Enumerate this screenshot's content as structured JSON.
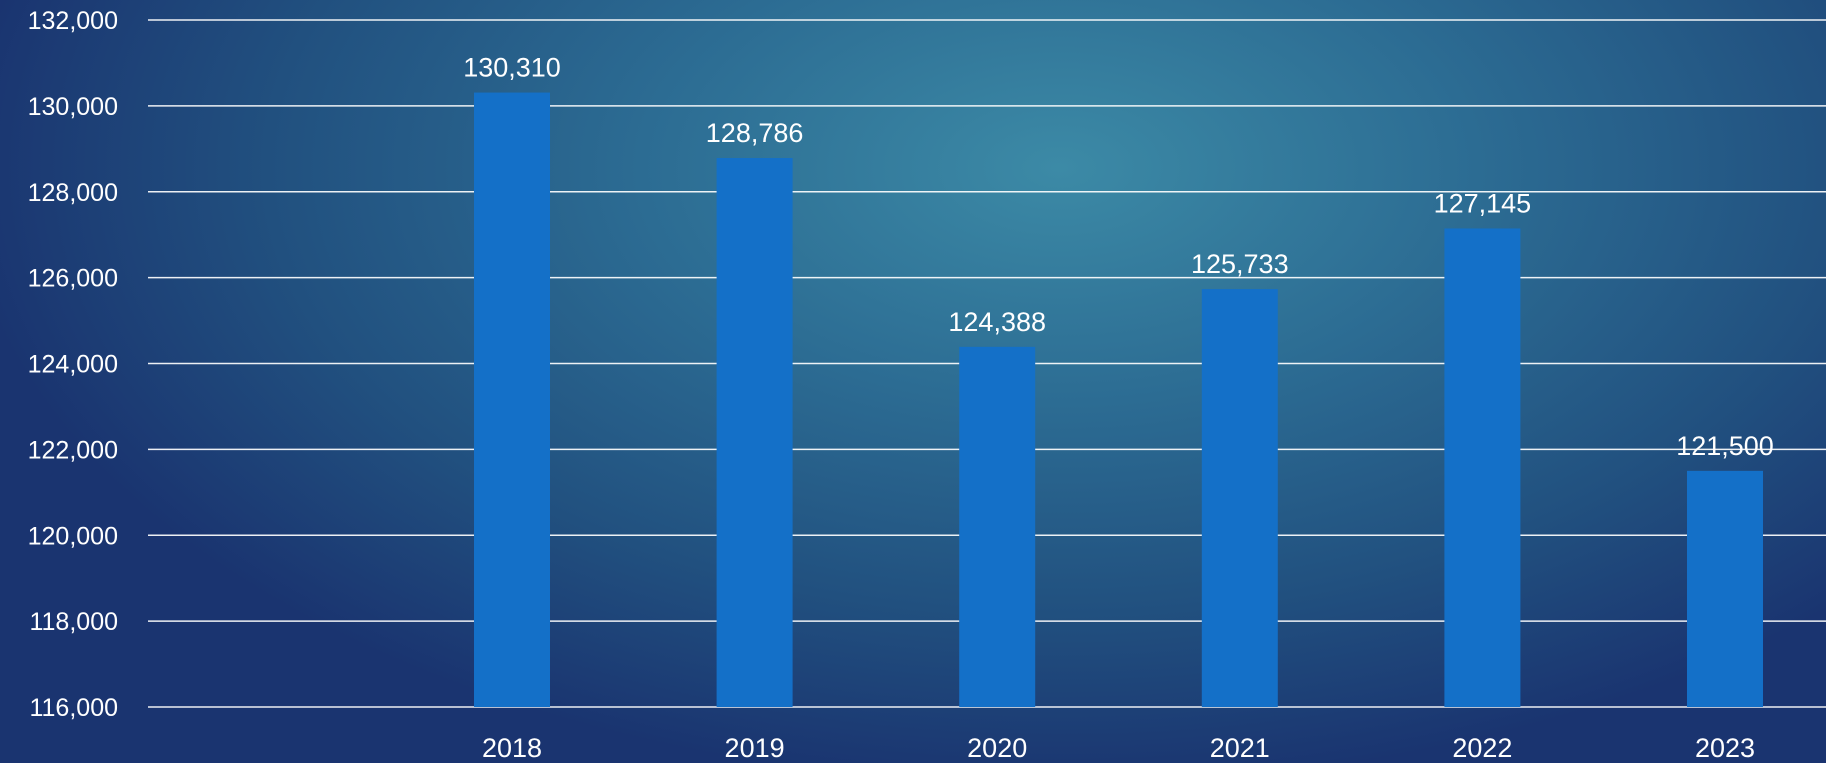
{
  "chart_data": {
    "type": "bar",
    "title": "",
    "xlabel": "",
    "ylabel": "",
    "categories": [
      "2018",
      "2019",
      "2020",
      "2021",
      "2022",
      "2023"
    ],
    "values": [
      130310,
      128786,
      124388,
      125733,
      127145,
      121500
    ],
    "data_labels": [
      "130,310",
      "128,786",
      "124,388",
      "125,733",
      "127,145",
      "121,500"
    ],
    "ylim": [
      116000,
      132000
    ],
    "y_ticks": [
      116000,
      118000,
      120000,
      122000,
      124000,
      126000,
      128000,
      130000,
      132000
    ],
    "y_tick_labels": [
      "116,000",
      "118,000",
      "120,000",
      "122,000",
      "124,000",
      "126,000",
      "128,000",
      "130,000",
      "132,000"
    ],
    "grid": true,
    "legend": "none",
    "colors": {
      "bar": "#1470c8",
      "gridline": "#ffffff",
      "text": "#ffffff"
    }
  }
}
